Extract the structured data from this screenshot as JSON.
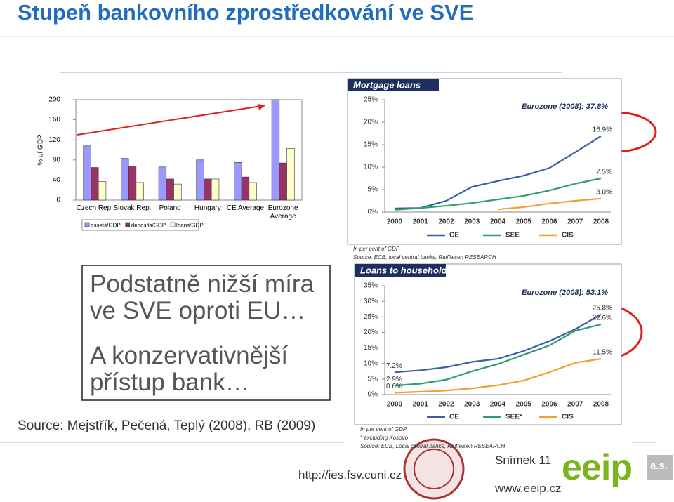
{
  "slide": {
    "title": "Stupeň bankovního zprostředkování ve SVE",
    "box_lines": [
      "Podstatně nižší míra",
      "ve SVE oproti EU…",
      "A konzervativnější",
      "přístup bank…"
    ],
    "source": "Source: Mejstřík, Pečená, Teplý (2008), RB (2009)",
    "url": "http://ies.fsv.cuni.cz",
    "slide_number": "Snímek 11",
    "website": "www.eeip.cz",
    "logo": "eeip",
    "logo_suffix": "a.s."
  },
  "chart_data": [
    {
      "type": "bar",
      "ylabel": "% of GDP",
      "categories": [
        "Czech Rep.",
        "Slovak Rep.",
        "Poland",
        "Hungary",
        "CE Average",
        "Eurozone Average"
      ],
      "series": [
        {
          "name": "assets/GDP",
          "color": "#9999ff",
          "values": [
            108,
            83,
            66,
            80,
            75,
            200
          ]
        },
        {
          "name": "deposits/GDP",
          "color": "#993366",
          "values": [
            65,
            68,
            42,
            42,
            46,
            74
          ]
        },
        {
          "name": "loans/GDP",
          "color": "#ffffcc",
          "values": [
            37,
            35,
            32,
            42,
            35,
            103
          ]
        }
      ],
      "ylim": [
        0,
        200
      ],
      "yticks": [
        0,
        40,
        80,
        120,
        160,
        200
      ]
    },
    {
      "type": "line",
      "title": "Mortgage loans",
      "annotation": "Eurozone (2008): 37.8%",
      "categories": [
        "2000",
        "2001",
        "2002",
        "2003",
        "2004",
        "2005",
        "2006",
        "2007",
        "2008"
      ],
      "series": [
        {
          "name": "CE",
          "color": "#3a5fa8",
          "values": [
            0.8,
            0.9,
            2.5,
            5.6,
            6.9,
            8.1,
            9.8,
            13.3,
            16.9
          ],
          "value_labels": [
            null,
            null,
            null,
            null,
            null,
            null,
            null,
            null,
            "16.9%"
          ]
        },
        {
          "name": "SEE",
          "color": "#2e9e6e",
          "values": [
            0.5,
            0.9,
            1.4,
            2.0,
            2.8,
            3.6,
            4.8,
            6.3,
            7.5
          ],
          "value_labels": [
            null,
            null,
            null,
            null,
            null,
            null,
            null,
            null,
            "7.5%"
          ]
        },
        {
          "name": "CIS",
          "color": "#f0a030",
          "values": [
            null,
            null,
            null,
            null,
            0.6,
            1.1,
            1.9,
            2.5,
            3.0
          ],
          "value_labels": [
            null,
            null,
            null,
            null,
            null,
            null,
            null,
            null,
            "3.0%"
          ]
        }
      ],
      "ylim": [
        0,
        25
      ],
      "yticks": [
        {
          "value": 0,
          "label": "0%"
        },
        {
          "value": 5,
          "label": "5%"
        },
        {
          "value": 10,
          "label": "10%"
        },
        {
          "value": 15,
          "label": "15%"
        },
        {
          "value": 20,
          "label": "20%"
        },
        {
          "value": 25,
          "label": "25%"
        }
      ],
      "notes": [
        "In per cent of GDP",
        "Source: ECB, local central banks, Raiffeisen RESEARCH"
      ]
    },
    {
      "type": "line",
      "title": "Loans to households",
      "annotation": "Eurozone (2008): 53.1%",
      "categories": [
        "2000",
        "2001",
        "2002",
        "2003",
        "2004",
        "2005",
        "2006",
        "2007",
        "2008"
      ],
      "series": [
        {
          "name": "CE",
          "color": "#3a5fa8",
          "values": [
            7.2,
            7.8,
            8.8,
            10.5,
            11.5,
            14.0,
            17.2,
            21.0,
            25.8
          ],
          "value_labels": [
            "7.2%",
            null,
            null,
            null,
            null,
            null,
            null,
            null,
            "25.8%"
          ]
        },
        {
          "name": "SEE*",
          "color": "#2e9e6e",
          "values": [
            2.9,
            3.5,
            4.8,
            7.5,
            9.8,
            12.8,
            15.8,
            20.5,
            22.6
          ],
          "value_labels": [
            "2.9%",
            null,
            null,
            null,
            null,
            null,
            null,
            null,
            "22.6%"
          ]
        },
        {
          "name": "CIS",
          "color": "#f0a030",
          "values": [
            0.6,
            0.9,
            1.3,
            2.0,
            3.0,
            4.5,
            7.2,
            10.2,
            11.5
          ],
          "value_labels": [
            "0.6%",
            null,
            null,
            null,
            null,
            null,
            null,
            null,
            "11.5%"
          ]
        }
      ],
      "ylim": [
        0,
        35
      ],
      "yticks": [
        {
          "value": 0,
          "label": "0%"
        },
        {
          "value": 5,
          "label": "5%"
        },
        {
          "value": 10,
          "label": "10%"
        },
        {
          "value": 15,
          "label": "15%"
        },
        {
          "value": 20,
          "label": "20%"
        },
        {
          "value": 25,
          "label": "25%"
        },
        {
          "value": 30,
          "label": "30%"
        },
        {
          "value": 35,
          "label": "35%"
        }
      ],
      "notes": [
        "In per cent of GDP",
        "* excluding Kosovo",
        "Source: ECB, Local central banks, Raiffeisen RESEARCH"
      ]
    }
  ]
}
